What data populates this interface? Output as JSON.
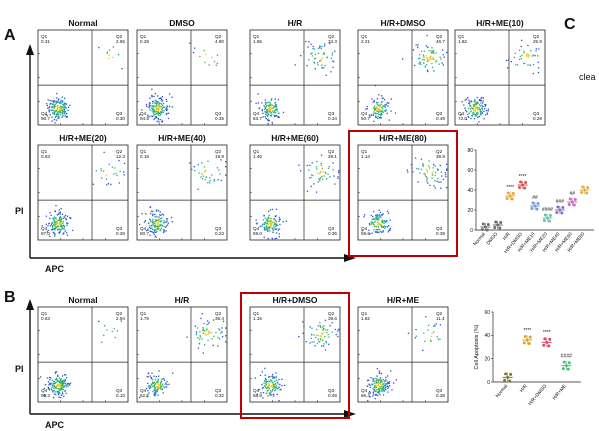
{
  "panels": {
    "a": "A",
    "b": "B",
    "c": "C",
    "c_fragment": "clea"
  },
  "axes": {
    "x": "APC",
    "y": "PI"
  },
  "colors": {
    "highlight": "#c00000",
    "dot_main": "#2f52c8",
    "dot_mid": "#1e9fb0",
    "dot_core": "#3ab84a",
    "dot_hot": "#f2c21d"
  },
  "quadrant_labels": [
    "Q1",
    "Q2",
    "Q3",
    "Q4"
  ],
  "chart_data": [
    {
      "type": "scatter",
      "panel": "A",
      "xlabel": "APC",
      "ylabel": "PI",
      "plots": [
        {
          "title": "Normal",
          "q1": "0.31",
          "q2": "2.65",
          "q3": "0.30",
          "q4": "96.7"
        },
        {
          "title": "DMSO",
          "q1": "0.29",
          "q2": "4.90",
          "q3": "0.35",
          "q4": "94.5"
        },
        {
          "title": "H/R",
          "q1": "1.65",
          "q2": "34.3",
          "q3": "0.34",
          "q4": "63.7"
        },
        {
          "title": "H/R+DMSO",
          "q1": "2.21",
          "q2": "46.7",
          "q3": "0.49",
          "q4": "50.7"
        },
        {
          "title": "H/R+ME(10)",
          "q1": "1.82",
          "q2": "25.9",
          "q3": "0.28",
          "q4": "72.0"
        },
        {
          "title": "H/R+ME(20)",
          "q1": "0.63",
          "q2": "12.3",
          "q3": "0.26",
          "q4": "87.0"
        },
        {
          "title": "H/R+ME(40)",
          "q1": "0.18",
          "q2": "19.9",
          "q3": "0.23",
          "q4": "80.7"
        },
        {
          "title": "H/R+ME(60)",
          "q1": "1.46",
          "q2": "29.1",
          "q3": "0.36",
          "q4": "69.0"
        },
        {
          "title": "H/R+ME(80)",
          "q1": "1.14",
          "q2": "38.9",
          "q3": "0.39",
          "q4": "59.6",
          "highlighted": true
        }
      ]
    },
    {
      "type": "scatter",
      "panel": "B",
      "xlabel": "APC",
      "ylabel": "PI",
      "plots": [
        {
          "title": "Normal",
          "q1": "0.63",
          "q2": "2.94",
          "q3": "0.10",
          "q4": "96.3"
        },
        {
          "title": "H/R",
          "q1": "1.79",
          "q2": "35.4",
          "q3": "0.32",
          "q4": "62.5"
        },
        {
          "title": "H/R+DMSO",
          "q1": "1.15",
          "q2": "39.6",
          "q3": "0.49",
          "q4": "58.8",
          "highlighted": true
        },
        {
          "title": "H/R+ME",
          "q1": "1.82",
          "q2": "11.4",
          "q3": "0.38",
          "q4": "86.4"
        }
      ]
    },
    {
      "type": "scatter",
      "panel": "C",
      "ylabel": "",
      "categories": [
        "Normal",
        "DMSO",
        "H/R",
        "H/R+DMSO",
        "H/R+ME10",
        "H/R+ME20",
        "H/R+ME40",
        "H/R+ME60",
        "H/R+ME80"
      ],
      "values": [
        3,
        5,
        34,
        45,
        24,
        12,
        20,
        28,
        40
      ],
      "markers": [
        "",
        "",
        "****",
        "****",
        "##",
        "####",
        "###",
        "##",
        ""
      ],
      "ylim": [
        0,
        80
      ],
      "yticks": [
        "0",
        "20",
        "40",
        "60",
        "80"
      ],
      "colors": [
        "#6b6b6b",
        "#6b6b6b",
        "#e8a33a",
        "#d95050",
        "#6fa0d6",
        "#67c2a8",
        "#8a6fc8",
        "#c26fb8",
        "#e0b040"
      ]
    },
    {
      "type": "scatter",
      "panel": "B",
      "ylabel": "Cell Apoptosis (%)",
      "categories": [
        "Normal",
        "H/R",
        "H/R+DMSO",
        "H/R+ME"
      ],
      "values": [
        4,
        36,
        34,
        14
      ],
      "markers": [
        "",
        "****",
        "****",
        "####"
      ],
      "ylim": [
        0,
        60
      ],
      "yticks": [
        "0",
        "20",
        "40",
        "60"
      ],
      "colors": [
        "#7a7a2a",
        "#d7a51f",
        "#d64a6a",
        "#4fbf7a"
      ]
    }
  ]
}
